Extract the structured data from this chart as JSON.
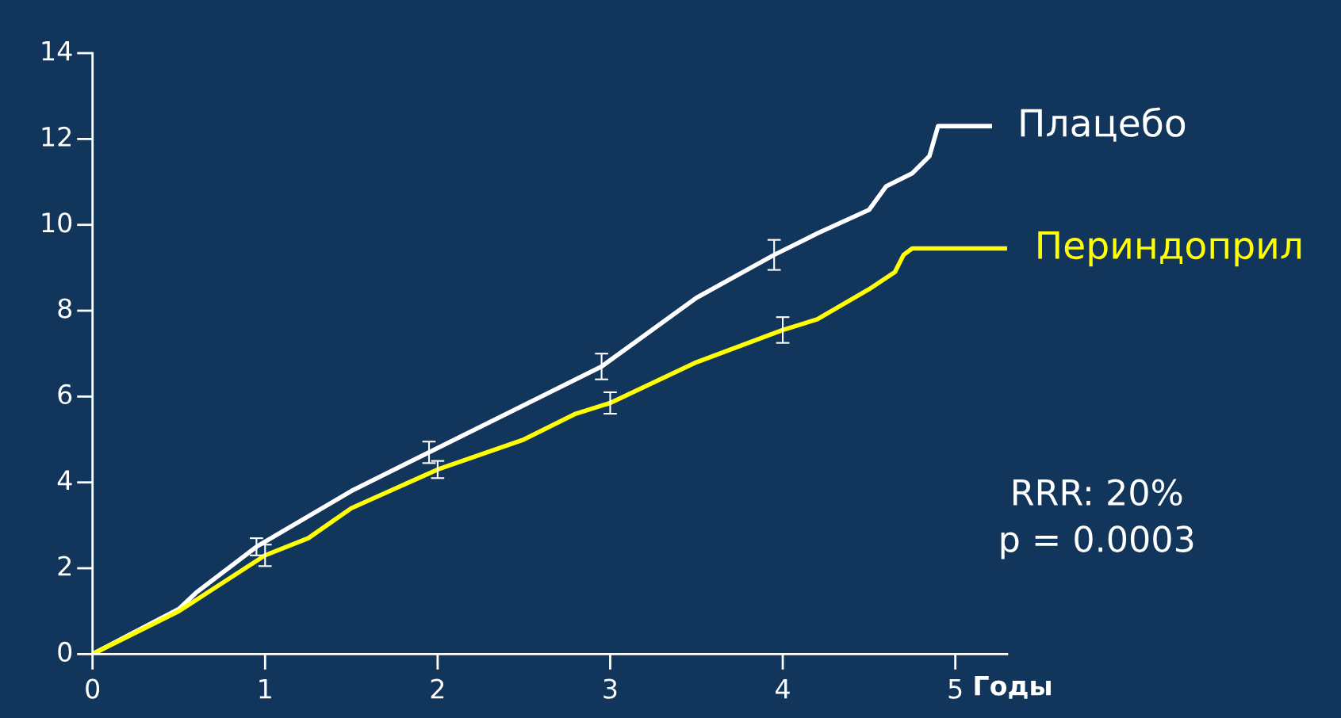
{
  "chart_data": {
    "type": "line",
    "xlabel": "Годы",
    "xlim": [
      0,
      5.3
    ],
    "ylim": [
      0,
      14
    ],
    "xticks": [
      0,
      1,
      2,
      3,
      4,
      5
    ],
    "yticks": [
      0,
      2,
      4,
      6,
      8,
      10,
      12,
      14
    ],
    "grid": false,
    "legend": false,
    "series": [
      {
        "name": "Плацебо",
        "color": "#ffffff",
        "x": [
          0,
          0.5,
          0.6,
          0.95,
          1.5,
          1.95,
          2.5,
          2.95,
          3.5,
          3.95,
          4.2,
          4.5,
          4.6,
          4.75,
          4.85,
          4.9,
          5.2
        ],
        "values": [
          0,
          1.05,
          1.43,
          2.5,
          3.8,
          4.7,
          5.8,
          6.7,
          8.3,
          9.3,
          9.8,
          10.35,
          10.9,
          11.2,
          11.6,
          12.3,
          12.3
        ],
        "errors": [
          null,
          null,
          null,
          0.2,
          null,
          0.25,
          null,
          0.3,
          null,
          0.35,
          null,
          null,
          null,
          null,
          null,
          null,
          null
        ]
      },
      {
        "name": "Периндоприл",
        "color": "#ffff00",
        "x": [
          0,
          0.5,
          1.0,
          1.25,
          1.5,
          2.0,
          2.5,
          2.8,
          3.0,
          3.5,
          4.0,
          4.2,
          4.5,
          4.65,
          4.7,
          4.75,
          5.3
        ],
        "values": [
          0,
          1.0,
          2.3,
          2.7,
          3.4,
          4.3,
          5.0,
          5.6,
          5.85,
          6.8,
          7.55,
          7.8,
          8.5,
          8.9,
          9.3,
          9.45,
          9.45
        ],
        "errors": [
          null,
          null,
          0.25,
          null,
          null,
          0.2,
          null,
          null,
          0.25,
          null,
          0.3,
          null,
          null,
          null,
          null,
          null,
          null
        ]
      }
    ],
    "annotations": [
      "RRR: 20%",
      "p = 0.0003"
    ]
  }
}
